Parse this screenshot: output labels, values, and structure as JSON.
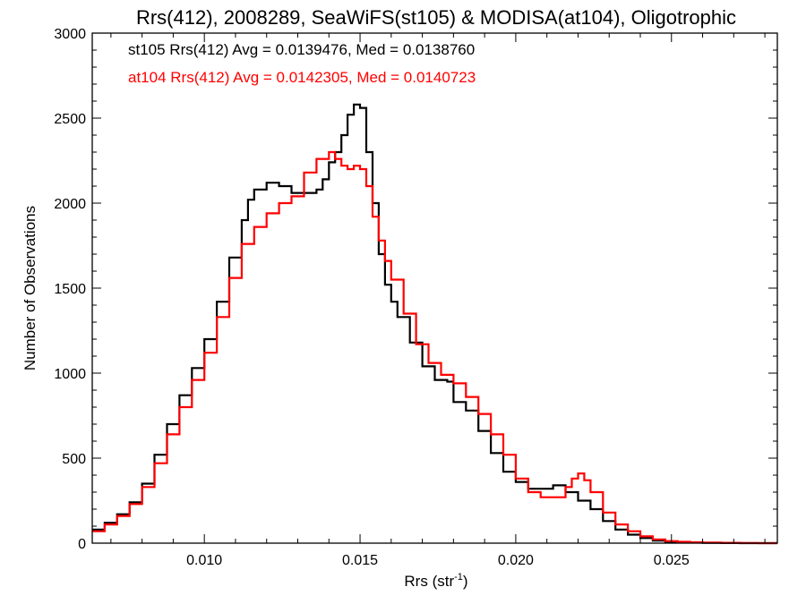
{
  "chart_data": {
    "type": "line",
    "title": "Rrs(412), 2008289, SeaWiFS(st105) & MODISA(at104), Oligotrophic",
    "xlabel": "Rrs (str",
    "xlabel_sup": "-1",
    "xlabel_close": ")",
    "ylabel": "Number of Observations",
    "xlim": [
      0.0064,
      0.0284
    ],
    "ylim": [
      0,
      3000
    ],
    "xticks": [
      0.01,
      0.015,
      0.02,
      0.025
    ],
    "xtick_labels": [
      "0.010",
      "0.015",
      "0.020",
      "0.025"
    ],
    "yticks": [
      0,
      500,
      1000,
      1500,
      2000,
      2500,
      3000
    ],
    "ytick_labels": [
      "0",
      "500",
      "1000",
      "1500",
      "2000",
      "2500",
      "3000"
    ],
    "grid": false,
    "legend_position": "top-left",
    "series": [
      {
        "name": "st105 Rrs(412) Avg = 0.0139476, Med = 0.0138760",
        "color": "#000000",
        "x": [
          0.0064,
          0.0068,
          0.0072,
          0.0076,
          0.008,
          0.0084,
          0.0088,
          0.0092,
          0.0096,
          0.01,
          0.0104,
          0.0108,
          0.0112,
          0.0114,
          0.0116,
          0.012,
          0.0124,
          0.0128,
          0.0132,
          0.0136,
          0.0138,
          0.014,
          0.0142,
          0.0144,
          0.0146,
          0.0148,
          0.015,
          0.0152,
          0.0154,
          0.0156,
          0.0158,
          0.016,
          0.0162,
          0.0166,
          0.017,
          0.0174,
          0.0178,
          0.018,
          0.0184,
          0.0188,
          0.0192,
          0.0196,
          0.02,
          0.0204,
          0.0208,
          0.0212,
          0.0216,
          0.022,
          0.0224,
          0.0228,
          0.0232,
          0.0236,
          0.024,
          0.0244,
          0.0248,
          0.0252,
          0.0256,
          0.026,
          0.0266,
          0.0272,
          0.0278,
          0.0284
        ],
        "y": [
          80,
          120,
          170,
          240,
          350,
          520,
          700,
          870,
          1030,
          1200,
          1420,
          1680,
          1900,
          2020,
          2080,
          2120,
          2100,
          2060,
          2060,
          2080,
          2140,
          2240,
          2300,
          2400,
          2520,
          2580,
          2560,
          2300,
          2000,
          1700,
          1520,
          1420,
          1330,
          1180,
          1040,
          960,
          950,
          830,
          780,
          660,
          530,
          420,
          360,
          320,
          320,
          340,
          300,
          250,
          200,
          130,
          80,
          50,
          30,
          15,
          8,
          5,
          3,
          2,
          1,
          0,
          0,
          0
        ],
        "points": [
          [
            0.0064,
            80
          ],
          [
            0.0068,
            120
          ],
          [
            0.0072,
            170
          ],
          [
            0.0076,
            240
          ],
          [
            0.008,
            350
          ],
          [
            0.0084,
            520
          ],
          [
            0.0088,
            700
          ],
          [
            0.0092,
            870
          ],
          [
            0.0096,
            1030
          ],
          [
            0.01,
            1200
          ],
          [
            0.0104,
            1420
          ],
          [
            0.0108,
            1680
          ],
          [
            0.0112,
            1900
          ],
          [
            0.0114,
            2020
          ],
          [
            0.0116,
            2080
          ],
          [
            0.012,
            2120
          ],
          [
            0.0124,
            2100
          ],
          [
            0.0128,
            2060
          ],
          [
            0.0132,
            2060
          ],
          [
            0.0136,
            2080
          ],
          [
            0.0138,
            2140
          ],
          [
            0.014,
            2240
          ],
          [
            0.0142,
            2300
          ],
          [
            0.0144,
            2400
          ],
          [
            0.0146,
            2520
          ],
          [
            0.0148,
            2580
          ],
          [
            0.015,
            2560
          ],
          [
            0.0152,
            2300
          ],
          [
            0.0154,
            2000
          ],
          [
            0.0156,
            1700
          ],
          [
            0.0158,
            1520
          ],
          [
            0.016,
            1420
          ],
          [
            0.0162,
            1330
          ],
          [
            0.0166,
            1180
          ],
          [
            0.017,
            1040
          ],
          [
            0.0174,
            960
          ],
          [
            0.0178,
            950
          ],
          [
            0.018,
            830
          ],
          [
            0.0184,
            780
          ],
          [
            0.0188,
            660
          ],
          [
            0.0192,
            530
          ],
          [
            0.0196,
            420
          ],
          [
            0.02,
            360
          ],
          [
            0.0204,
            320
          ],
          [
            0.0208,
            320
          ],
          [
            0.0212,
            340
          ],
          [
            0.0216,
            300
          ],
          [
            0.022,
            250
          ],
          [
            0.0224,
            200
          ],
          [
            0.0228,
            130
          ],
          [
            0.0232,
            80
          ],
          [
            0.0236,
            50
          ],
          [
            0.024,
            30
          ],
          [
            0.0244,
            15
          ],
          [
            0.0248,
            8
          ],
          [
            0.0252,
            5
          ],
          [
            0.0256,
            3
          ],
          [
            0.026,
            2
          ],
          [
            0.0266,
            1
          ],
          [
            0.0272,
            0
          ],
          [
            0.0278,
            0
          ],
          [
            0.0284,
            0
          ]
        ]
      },
      {
        "name": "at104 Rrs(412) Avg = 0.0142305, Med = 0.0140723",
        "color": "#ff0000",
        "x": [
          0.0064,
          0.0068,
          0.0072,
          0.0076,
          0.008,
          0.0084,
          0.0088,
          0.0092,
          0.0096,
          0.01,
          0.0104,
          0.0108,
          0.0112,
          0.0116,
          0.012,
          0.0124,
          0.0128,
          0.0132,
          0.0136,
          0.014,
          0.0142,
          0.0144,
          0.0146,
          0.0148,
          0.015,
          0.0152,
          0.0154,
          0.0156,
          0.0158,
          0.016,
          0.0164,
          0.0168,
          0.0172,
          0.0176,
          0.018,
          0.0184,
          0.0188,
          0.0192,
          0.0196,
          0.02,
          0.0204,
          0.0208,
          0.0212,
          0.0216,
          0.0218,
          0.022,
          0.0222,
          0.0224,
          0.0228,
          0.0232,
          0.0236,
          0.024,
          0.0244,
          0.0248,
          0.0252,
          0.0256,
          0.026,
          0.0266,
          0.0272,
          0.0278,
          0.0284
        ],
        "y": [
          70,
          110,
          160,
          230,
          330,
          470,
          640,
          800,
          960,
          1120,
          1330,
          1560,
          1760,
          1860,
          1940,
          2000,
          2040,
          2180,
          2260,
          2300,
          2260,
          2220,
          2200,
          2220,
          2200,
          2100,
          1920,
          1780,
          1660,
          1550,
          1350,
          1170,
          1060,
          990,
          940,
          860,
          760,
          640,
          520,
          380,
          300,
          270,
          270,
          330,
          380,
          410,
          370,
          300,
          180,
          110,
          70,
          40,
          22,
          12,
          8,
          5,
          3,
          2,
          1,
          0,
          0
        ],
        "points": [
          [
            0.0064,
            70
          ],
          [
            0.0068,
            110
          ],
          [
            0.0072,
            160
          ],
          [
            0.0076,
            230
          ],
          [
            0.008,
            330
          ],
          [
            0.0084,
            470
          ],
          [
            0.0088,
            640
          ],
          [
            0.0092,
            800
          ],
          [
            0.0096,
            960
          ],
          [
            0.01,
            1120
          ],
          [
            0.0104,
            1330
          ],
          [
            0.0108,
            1560
          ],
          [
            0.0112,
            1760
          ],
          [
            0.0116,
            1860
          ],
          [
            0.012,
            1940
          ],
          [
            0.0124,
            2000
          ],
          [
            0.0128,
            2040
          ],
          [
            0.0132,
            2180
          ],
          [
            0.0136,
            2260
          ],
          [
            0.014,
            2300
          ],
          [
            0.0142,
            2260
          ],
          [
            0.0144,
            2220
          ],
          [
            0.0146,
            2200
          ],
          [
            0.0148,
            2220
          ],
          [
            0.015,
            2200
          ],
          [
            0.0152,
            2100
          ],
          [
            0.0154,
            1920
          ],
          [
            0.0156,
            1780
          ],
          [
            0.0158,
            1660
          ],
          [
            0.016,
            1550
          ],
          [
            0.0164,
            1350
          ],
          [
            0.0168,
            1170
          ],
          [
            0.0172,
            1060
          ],
          [
            0.0176,
            990
          ],
          [
            0.018,
            940
          ],
          [
            0.0184,
            860
          ],
          [
            0.0188,
            760
          ],
          [
            0.0192,
            640
          ],
          [
            0.0196,
            520
          ],
          [
            0.02,
            380
          ],
          [
            0.0204,
            300
          ],
          [
            0.0208,
            270
          ],
          [
            0.0212,
            270
          ],
          [
            0.0216,
            330
          ],
          [
            0.0218,
            380
          ],
          [
            0.022,
            410
          ],
          [
            0.0222,
            370
          ],
          [
            0.0224,
            300
          ],
          [
            0.0228,
            180
          ],
          [
            0.0232,
            110
          ],
          [
            0.0236,
            70
          ],
          [
            0.024,
            40
          ],
          [
            0.0244,
            22
          ],
          [
            0.0248,
            12
          ],
          [
            0.0252,
            8
          ],
          [
            0.0256,
            5
          ],
          [
            0.026,
            3
          ],
          [
            0.0266,
            2
          ],
          [
            0.0272,
            1
          ],
          [
            0.0278,
            0
          ],
          [
            0.0284,
            0
          ]
        ]
      }
    ]
  }
}
